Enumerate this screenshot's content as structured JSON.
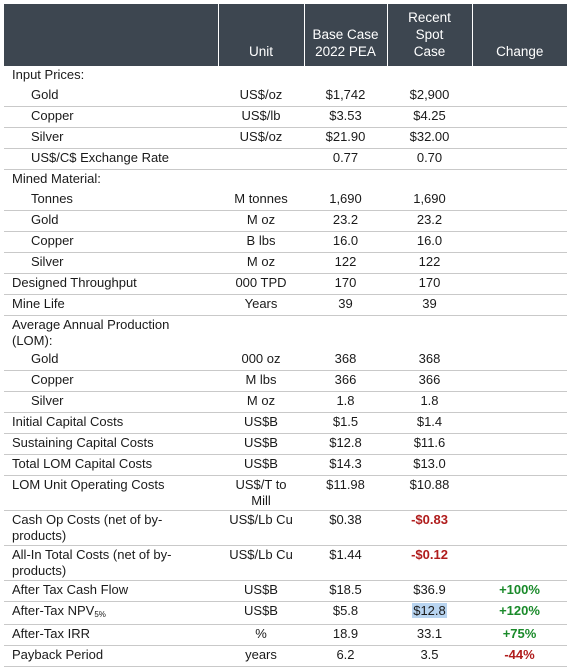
{
  "header": {
    "label": "",
    "unit": "Unit",
    "base_l1": "Base Case",
    "base_l2": "2022 PEA",
    "spot_l1": "Recent",
    "spot_l2": "Spot",
    "spot_l3": "Case",
    "change": "Change"
  },
  "rows": {
    "input_prices": {
      "label": "Input Prices:"
    },
    "gold_price": {
      "label": "Gold",
      "unit": "US$/oz",
      "base": "$1,742",
      "spot": "$2,900",
      "change": ""
    },
    "copper_price": {
      "label": "Copper",
      "unit": "US$/lb",
      "base": "$3.53",
      "spot": "$4.25",
      "change": ""
    },
    "silver_price": {
      "label": "Silver",
      "unit": "US$/oz",
      "base": "$21.90",
      "spot": "$32.00",
      "change": ""
    },
    "fx": {
      "label": "US$/C$ Exchange Rate",
      "unit": "",
      "base": "0.77",
      "spot": "0.70",
      "change": ""
    },
    "mined_material": {
      "label": "Mined Material:"
    },
    "tonnes": {
      "label": "Tonnes",
      "unit": "M tonnes",
      "base": "1,690",
      "spot": "1,690",
      "change": ""
    },
    "gold_mined": {
      "label": "Gold",
      "unit": "M oz",
      "base": "23.2",
      "spot": "23.2",
      "change": ""
    },
    "copper_mined": {
      "label": "Copper",
      "unit": "B lbs",
      "base": "16.0",
      "spot": "16.0",
      "change": ""
    },
    "silver_mined": {
      "label": "Silver",
      "unit": "M oz",
      "base": "122",
      "spot": "122",
      "change": ""
    },
    "throughput": {
      "label": "Designed Throughput",
      "unit": "000 TPD",
      "base": "170",
      "spot": "170",
      "change": ""
    },
    "mine_life": {
      "label": "Mine Life",
      "unit": "Years",
      "base": "39",
      "spot": "39",
      "change": ""
    },
    "avg_prod": {
      "label_l1": "Average Annual Production",
      "label_l2": "(LOM):"
    },
    "gold_prod": {
      "label": "Gold",
      "unit": "000 oz",
      "base": "368",
      "spot": "368",
      "change": ""
    },
    "copper_prod": {
      "label": "Copper",
      "unit": "M lbs",
      "base": "366",
      "spot": "366",
      "change": ""
    },
    "silver_prod": {
      "label": "Silver",
      "unit": "M oz",
      "base": "1.8",
      "spot": "1.8",
      "change": ""
    },
    "init_capex": {
      "label": "Initial Capital Costs",
      "unit": "US$B",
      "base": "$1.5",
      "spot": "$1.4",
      "change": ""
    },
    "sust_capex": {
      "label": "Sustaining Capital Costs",
      "unit": "US$B",
      "base": "$12.8",
      "spot": "$11.6",
      "change": ""
    },
    "total_capex": {
      "label": "Total LOM Capital Costs",
      "unit": "US$B",
      "base": "$14.3",
      "spot": "$13.0",
      "change": ""
    },
    "unit_opex": {
      "label": "LOM Unit Operating Costs",
      "unit_l1": "US$/T to",
      "unit_l2": "Mill",
      "base": "$11.98",
      "spot": "$10.88",
      "change": ""
    },
    "cash_op": {
      "label_l1": "Cash Op Costs (net of by-",
      "label_l2": "products)",
      "unit": "US$/Lb Cu",
      "base": "$0.38",
      "spot": "-$0.83",
      "change": ""
    },
    "aisc": {
      "label_l1": "All-In Total Costs (net of by-",
      "label_l2": "products)",
      "unit": "US$/Lb Cu",
      "base": "$1.44",
      "spot": "-$0.12",
      "change": ""
    },
    "cash_flow": {
      "label": "After Tax Cash Flow",
      "unit": "US$B",
      "base": "$18.5",
      "spot": "$36.9",
      "change": "+100%"
    },
    "npv": {
      "label": "After-Tax NPV",
      "label_sub": "5%",
      "unit": "US$B",
      "base": "$5.8",
      "spot": "$12.8",
      "change": "+120%"
    },
    "irr": {
      "label": "After-Tax IRR",
      "unit": "%",
      "base": "18.9",
      "spot": "33.1",
      "change": "+75%"
    },
    "payback": {
      "label": "Payback Period",
      "unit": "years",
      "base": "6.2",
      "spot": "3.5",
      "change": "-44%"
    }
  },
  "colors": {
    "header_bg": "#3d4650",
    "negative": "#b01c1c",
    "positive": "#1a8a2a",
    "highlight": "#b8d4f0"
  }
}
